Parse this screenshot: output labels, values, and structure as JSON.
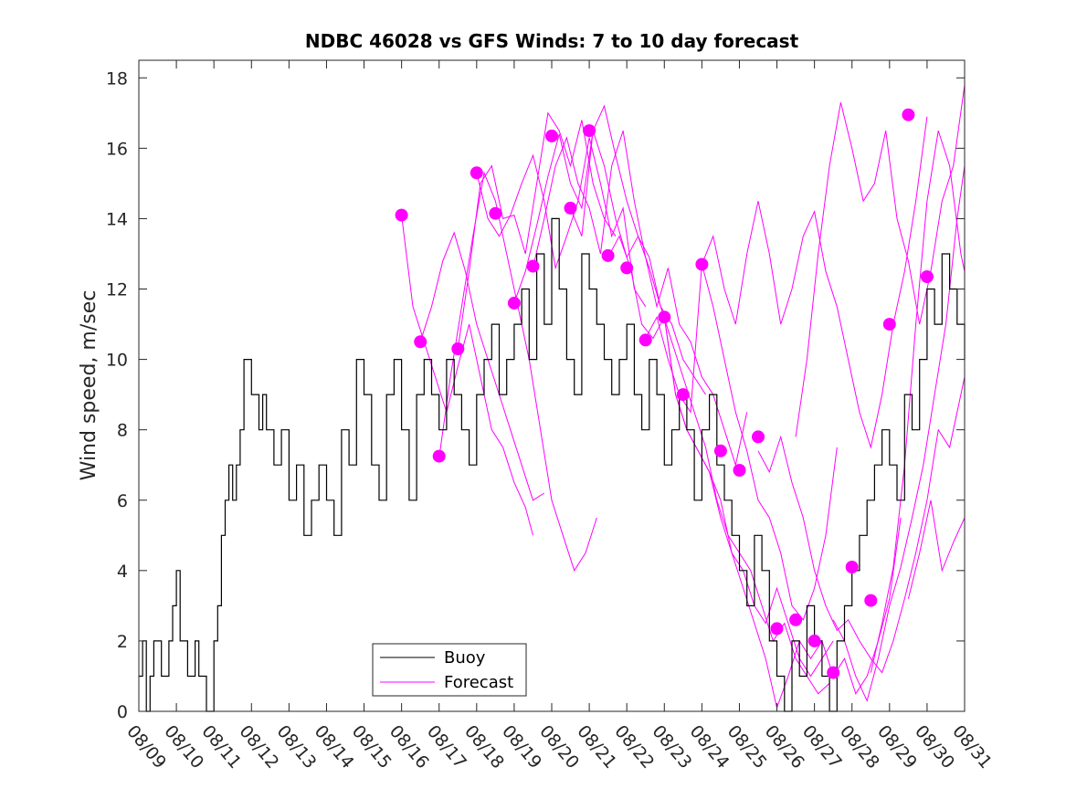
{
  "chart_data": {
    "type": "line",
    "title": "NDBC 46028 vs GFS Winds: 7 to 10 day forecast",
    "xlabel": "",
    "ylabel": "Wind speed, m/sec",
    "xlim": [
      0,
      22
    ],
    "ylim": [
      0,
      18.5
    ],
    "yticks": [
      0,
      2,
      4,
      6,
      8,
      10,
      12,
      14,
      16,
      18
    ],
    "xtick_labels": [
      "08/09",
      "08/10",
      "08/11",
      "08/12",
      "08/13",
      "08/14",
      "08/15",
      "08/16",
      "08/17",
      "08/18",
      "08/19",
      "08/20",
      "08/21",
      "08/22",
      "08/23",
      "08/24",
      "08/25",
      "08/26",
      "08/27",
      "08/28",
      "08/29",
      "08/30",
      "08/31"
    ],
    "legend": [
      "Buoy",
      "Forecast"
    ],
    "legend_position": "bottom-center",
    "colors": {
      "buoy": "#000000",
      "forecast": "#ff00ff"
    },
    "series": [
      {
        "name": "Buoy",
        "step": true,
        "x": [
          0.0,
          0.1,
          0.2,
          0.3,
          0.4,
          0.6,
          0.8,
          0.9,
          1.0,
          1.1,
          1.3,
          1.5,
          1.6,
          1.8,
          2.0,
          2.1,
          2.2,
          2.3,
          2.4,
          2.5,
          2.6,
          2.7,
          2.8,
          3.0,
          3.2,
          3.3,
          3.4,
          3.6,
          3.8,
          4.0,
          4.2,
          4.4,
          4.6,
          4.8,
          5.0,
          5.2,
          5.4,
          5.6,
          5.8,
          6.0,
          6.2,
          6.4,
          6.6,
          6.8,
          7.0,
          7.2,
          7.4,
          7.6,
          7.8,
          8.0,
          8.2,
          8.4,
          8.6,
          8.8,
          9.0,
          9.2,
          9.4,
          9.6,
          9.8,
          10.0,
          10.2,
          10.4,
          10.6,
          10.8,
          11.0,
          11.2,
          11.4,
          11.6,
          11.8,
          12.0,
          12.2,
          12.4,
          12.6,
          12.8,
          13.0,
          13.2,
          13.4,
          13.6,
          13.8,
          14.0,
          14.2,
          14.4,
          14.6,
          14.8,
          15.0,
          15.2,
          15.4,
          15.6,
          15.8,
          16.0,
          16.2,
          16.4,
          16.6,
          16.8,
          17.0,
          17.2,
          17.4,
          17.6,
          17.8,
          18.0,
          18.2,
          18.4,
          18.6,
          18.8,
          19.0,
          19.2,
          19.4,
          19.6,
          19.8,
          20.0,
          20.2,
          20.4,
          20.6,
          20.8,
          21.0,
          21.2,
          21.4,
          21.6,
          21.8,
          22.0
        ],
        "values": [
          1,
          2,
          0,
          1,
          2,
          1,
          2,
          3,
          4,
          2,
          1,
          2,
          1,
          0,
          2,
          3,
          5,
          6,
          7,
          6,
          7,
          8,
          10,
          9,
          8,
          9,
          8,
          7,
          8,
          6,
          7,
          5,
          6,
          7,
          6,
          5,
          8,
          7,
          10,
          9,
          7,
          6,
          9,
          10,
          8,
          6,
          9,
          10,
          9,
          8,
          10,
          9,
          8,
          7,
          9,
          10,
          11,
          9,
          10,
          11,
          12,
          10,
          13,
          11,
          14,
          12,
          10,
          9,
          13,
          12,
          11,
          10,
          9,
          10,
          11,
          9,
          8,
          10,
          9,
          7,
          8,
          9,
          8,
          6,
          8,
          9,
          7,
          6,
          5,
          4,
          3,
          5,
          4,
          2,
          1,
          0,
          2,
          1,
          3,
          2,
          1,
          0,
          2,
          3,
          4,
          5,
          6,
          7,
          8,
          7,
          6,
          9,
          8,
          10,
          12,
          11,
          13,
          12,
          11,
          10
        ]
      },
      {
        "name": "Forecast",
        "segments": [
          {
            "x": [
              7.0,
              7.3,
              7.6,
              7.9,
              8.2,
              8.5,
              8.8,
              9.1,
              9.4,
              9.7,
              10.0,
              10.3,
              10.5
            ],
            "values": [
              14.1,
              11.5,
              10.5,
              9.5,
              8.5,
              9.8,
              11.0,
              9.5,
              8.0,
              7.5,
              6.5,
              5.8,
              5.0
            ]
          },
          {
            "x": [
              7.5,
              7.8,
              8.1,
              8.4,
              8.7,
              9.0,
              9.3,
              9.6,
              9.9,
              10.2,
              10.5,
              10.8
            ],
            "values": [
              10.5,
              11.5,
              12.8,
              13.6,
              12.5,
              11.0,
              10.0,
              9.0,
              8.0,
              7.0,
              6.0,
              6.2
            ]
          },
          {
            "x": [
              8.0,
              8.3,
              8.6,
              8.9,
              9.2,
              9.5,
              9.8,
              10.1,
              10.4,
              10.7,
              11.0,
              11.3,
              11.6,
              11.9,
              12.2
            ],
            "values": [
              7.2,
              9.5,
              11.5,
              13.5,
              15.3,
              14.5,
              13.0,
              11.5,
              10.0,
              8.0,
              6.0,
              5.0,
              4.0,
              4.5,
              5.5
            ]
          },
          {
            "x": [
              8.5,
              8.8,
              9.1,
              9.4,
              9.7,
              10.0,
              10.3,
              10.6,
              10.9,
              11.2,
              11.5,
              11.8,
              12.1,
              12.4,
              12.7
            ],
            "values": [
              10.3,
              12.5,
              15.0,
              15.5,
              14.0,
              14.1,
              13.0,
              15.0,
              17.0,
              16.5,
              15.5,
              16.8,
              15.0,
              14.0,
              13.5
            ]
          },
          {
            "x": [
              9.0,
              9.3,
              9.6,
              9.9,
              10.2,
              10.5,
              10.8,
              11.1,
              11.4,
              11.7,
              12.0,
              12.3,
              12.6,
              12.9,
              13.2,
              13.5
            ],
            "values": [
              15.3,
              14.0,
              13.5,
              14.1,
              15.0,
              15.8,
              14.5,
              12.6,
              13.5,
              14.5,
              16.3,
              15.0,
              13.5,
              14.3,
              12.0,
              11.5
            ]
          },
          {
            "x": [
              10.0,
              10.3,
              10.6,
              10.9,
              11.2,
              11.5,
              11.8,
              12.1,
              12.4,
              12.7,
              13.0,
              13.3,
              13.6,
              13.9,
              14.2,
              14.5,
              14.8,
              15.1
            ],
            "values": [
              11.6,
              12.5,
              13.8,
              15.2,
              16.4,
              15.0,
              14.3,
              16.5,
              17.2,
              15.8,
              14.5,
              13.5,
              12.9,
              11.5,
              11.0,
              10.0,
              9.5,
              9.0
            ]
          },
          {
            "x": [
              10.5,
              10.8,
              11.1,
              11.4,
              11.7,
              12.0,
              12.3,
              12.6,
              12.9,
              13.2,
              13.5,
              13.8,
              14.1,
              14.4,
              14.7,
              15.0,
              15.3,
              15.6,
              15.9,
              16.2
            ],
            "values": [
              12.6,
              14.0,
              15.5,
              16.3,
              15.0,
              14.3,
              13.0,
              15.5,
              16.5,
              14.5,
              12.9,
              11.5,
              12.6,
              11.0,
              10.5,
              9.5,
              9.0,
              8.0,
              7.0,
              8.5
            ]
          },
          {
            "x": [
              11.5,
              11.8,
              12.1,
              12.4,
              12.7,
              13.0,
              13.3,
              13.6,
              13.9,
              14.2,
              14.5,
              14.8,
              15.1,
              15.4,
              15.7,
              16.0,
              16.3,
              16.6,
              16.9,
              17.2,
              17.5,
              17.8,
              18.1,
              18.4
            ],
            "values": [
              14.3,
              13.5,
              16.5,
              15.5,
              14.0,
              12.9,
              13.5,
              12.6,
              11.5,
              10.5,
              9.5,
              8.5,
              7.5,
              6.0,
              5.0,
              4.5,
              4.0,
              3.0,
              2.0,
              2.5,
              1.5,
              1.0,
              0.5,
              0.8
            ]
          },
          {
            "x": [
              12.5,
              12.8,
              13.1,
              13.4,
              13.7,
              14.0,
              14.3,
              14.6,
              14.9,
              15.2,
              15.5,
              15.8,
              16.1,
              16.4,
              16.7,
              17.0,
              17.3,
              17.6,
              17.9,
              18.2,
              18.5
            ],
            "values": [
              12.9,
              13.5,
              12.6,
              11.0,
              10.6,
              11.2,
              9.0,
              8.0,
              7.4,
              6.8,
              5.5,
              4.5,
              4.0,
              3.0,
              2.5,
              3.5,
              2.5,
              1.5,
              1.0,
              1.5,
              2.0
            ]
          },
          {
            "x": [
              13.5,
              13.8,
              14.1,
              14.4,
              14.7,
              15.0,
              15.3,
              15.6,
              15.9,
              16.2,
              16.5,
              16.8,
              17.1,
              17.4,
              17.7,
              18.0,
              18.3,
              18.6
            ],
            "values": [
              10.6,
              11.2,
              10.0,
              9.0,
              8.5,
              12.7,
              11.5,
              10.0,
              8.5,
              7.4,
              6.0,
              5.5,
              4.5,
              3.0,
              2.6,
              3.5,
              5.0,
              7.5
            ]
          },
          {
            "x": [
              14.0,
              14.3,
              14.6,
              14.9,
              15.2,
              15.5,
              15.8,
              16.1,
              16.4,
              16.7,
              17.0,
              17.3,
              17.6,
              17.9,
              18.2,
              18.5,
              18.8,
              19.1,
              19.4,
              19.7,
              20.0,
              20.3
            ],
            "values": [
              11.2,
              9.0,
              8.0,
              7.4,
              6.8,
              6.0,
              4.5,
              3.5,
              2.5,
              1.5,
              0.1,
              1.0,
              2.0,
              1.5,
              2.0,
              1.0,
              1.5,
              0.5,
              1.0,
              2.0,
              3.2,
              5.5
            ]
          },
          {
            "x": [
              15.0,
              15.3,
              15.6,
              15.9,
              16.2,
              16.5,
              16.8,
              17.1,
              17.4,
              17.7,
              18.0,
              18.3,
              18.6,
              18.9,
              19.2,
              19.5,
              19.8,
              20.1,
              20.4,
              20.7,
              21.0
            ],
            "values": [
              12.7,
              13.5,
              12.0,
              11.0,
              13.0,
              14.5,
              13.0,
              11.0,
              12.0,
              13.5,
              14.2,
              12.5,
              11.5,
              10.0,
              8.5,
              7.5,
              9.0,
              11.0,
              12.5,
              14.5,
              16.9
            ]
          },
          {
            "x": [
              16.5,
              16.8,
              17.1,
              17.4,
              17.7,
              18.0,
              18.3,
              18.6,
              18.9,
              19.2,
              19.5,
              19.8,
              20.1,
              20.4,
              20.7,
              21.0,
              21.3,
              21.6,
              21.9,
              22.0
            ],
            "values": [
              7.4,
              6.8,
              7.8,
              6.5,
              5.5,
              4.0,
              3.0,
              2.3,
              2.6,
              2.0,
              1.5,
              1.1,
              2.0,
              3.2,
              4.5,
              6.0,
              8.0,
              7.5,
              9.0,
              9.5
            ]
          },
          {
            "x": [
              17.5,
              17.8,
              18.1,
              18.4,
              18.7,
              19.0,
              19.3,
              19.6,
              19.9,
              20.2,
              20.5,
              20.8,
              21.1,
              21.4,
              21.7,
              22.0
            ],
            "values": [
              7.8,
              10.0,
              13.0,
              15.5,
              17.3,
              16.0,
              14.5,
              15.0,
              16.5,
              14.0,
              12.8,
              11.0,
              12.5,
              14.5,
              15.5,
              17.8
            ]
          },
          {
            "x": [
              18.5,
              18.8,
              19.1,
              19.4,
              19.7,
              20.0,
              20.3,
              20.6,
              20.9,
              21.2,
              21.5,
              21.8,
              22.0
            ],
            "values": [
              2.6,
              2.0,
              1.0,
              0.3,
              1.5,
              3.0,
              4.1,
              5.5,
              7.0,
              9.0,
              11.0,
              14.0,
              15.5
            ]
          },
          {
            "x": [
              19.5,
              19.8,
              20.1,
              20.4,
              20.7,
              21.0,
              21.3,
              21.6,
              21.9,
              22.0
            ],
            "values": [
              1.1,
              2.5,
              4.1,
              7.0,
              11.0,
              14.5,
              16.5,
              15.5,
              13.0,
              12.5
            ]
          },
          {
            "x": [
              20.5,
              20.8,
              21.1,
              21.4,
              21.7,
              22.0
            ],
            "values": [
              3.2,
              4.5,
              6.0,
              4.0,
              4.8,
              5.5
            ]
          }
        ],
        "markers": [
          {
            "x": 7.0,
            "y": 14.1
          },
          {
            "x": 7.5,
            "y": 10.5
          },
          {
            "x": 8.0,
            "y": 7.25
          },
          {
            "x": 8.5,
            "y": 10.3
          },
          {
            "x": 9.0,
            "y": 15.3
          },
          {
            "x": 9.5,
            "y": 14.15
          },
          {
            "x": 10.0,
            "y": 11.6
          },
          {
            "x": 10.5,
            "y": 12.65
          },
          {
            "x": 11.0,
            "y": 16.35
          },
          {
            "x": 11.5,
            "y": 14.3
          },
          {
            "x": 12.0,
            "y": 16.5
          },
          {
            "x": 12.5,
            "y": 12.95
          },
          {
            "x": 13.0,
            "y": 12.6
          },
          {
            "x": 13.5,
            "y": 10.55
          },
          {
            "x": 14.0,
            "y": 11.2
          },
          {
            "x": 14.5,
            "y": 9.0
          },
          {
            "x": 15.0,
            "y": 12.7
          },
          {
            "x": 15.5,
            "y": 7.4
          },
          {
            "x": 16.0,
            "y": 6.85
          },
          {
            "x": 16.5,
            "y": 7.8
          },
          {
            "x": 17.0,
            "y": 2.35
          },
          {
            "x": 17.5,
            "y": 2.6
          },
          {
            "x": 18.0,
            "y": 2.0
          },
          {
            "x": 18.5,
            "y": 1.1
          },
          {
            "x": 19.0,
            "y": 4.1
          },
          {
            "x": 19.5,
            "y": 3.15
          },
          {
            "x": 20.0,
            "y": 11.0
          },
          {
            "x": 20.5,
            "y": 16.95
          },
          {
            "x": 21.0,
            "y": 12.35
          }
        ]
      }
    ]
  }
}
